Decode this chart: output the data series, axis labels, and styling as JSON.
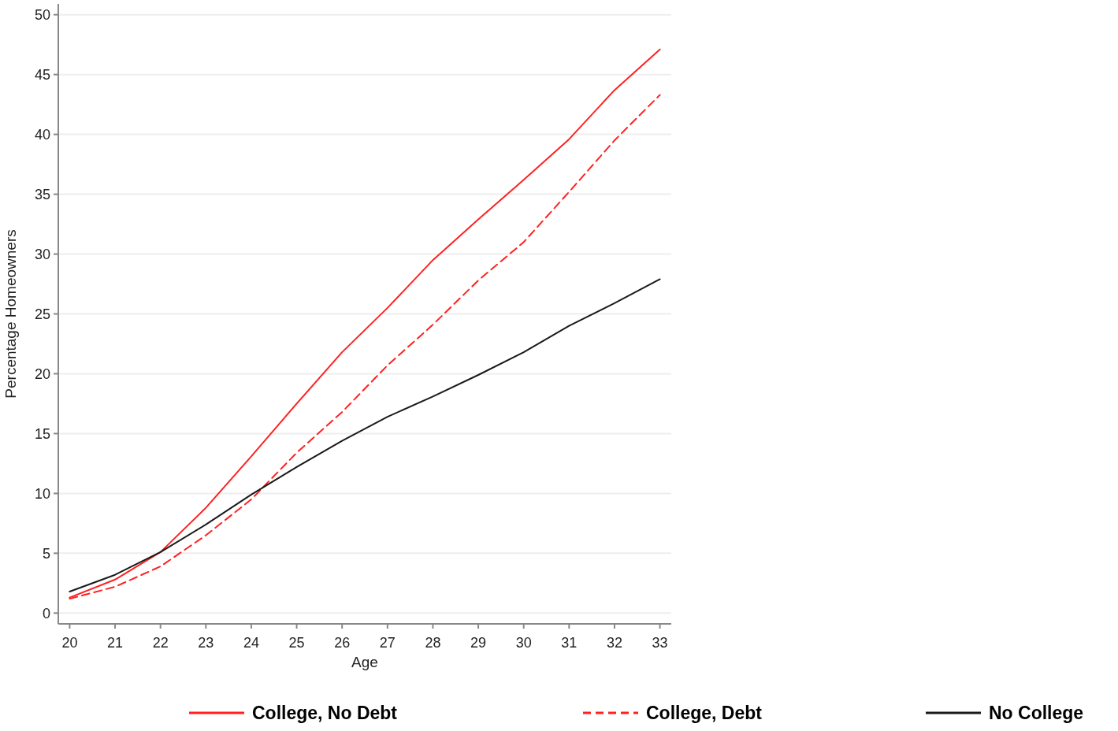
{
  "chart_data": {
    "type": "line",
    "xlabel": "Age",
    "ylabel": "Percentage Homeowners",
    "x": [
      20,
      21,
      22,
      23,
      24,
      25,
      26,
      27,
      28,
      29,
      30,
      31,
      32,
      33
    ],
    "series": [
      {
        "name": "College, No Debt",
        "color": "#ff2020",
        "line_style": "solid",
        "values": [
          1.3,
          2.8,
          5.1,
          8.8,
          13.1,
          17.5,
          21.8,
          25.5,
          29.5,
          32.9,
          36.2,
          39.6,
          43.7,
          47.1
        ]
      },
      {
        "name": "College, Debt",
        "color": "#ff2020",
        "line_style": "dashed",
        "values": [
          1.2,
          2.2,
          3.9,
          6.5,
          9.5,
          13.4,
          16.8,
          20.7,
          24.1,
          27.8,
          31.0,
          35.2,
          39.5,
          43.3
        ]
      },
      {
        "name": "No College",
        "color": "#1a1a1a",
        "line_style": "solid",
        "values": [
          1.8,
          3.2,
          5.1,
          7.4,
          9.9,
          12.2,
          14.4,
          16.4,
          18.1,
          19.9,
          21.8,
          24.0,
          25.9,
          27.9
        ]
      }
    ],
    "xlim": [
      19.75,
      33.25
    ],
    "xticks": [
      20,
      21,
      22,
      23,
      24,
      25,
      26,
      27,
      28,
      29,
      30,
      31,
      32,
      33
    ],
    "ylim": [
      -0.9,
      50.9
    ],
    "yticks": [
      0,
      5,
      10,
      15,
      20,
      25,
      30,
      35,
      40,
      45,
      50
    ],
    "grid": "y",
    "legend": "bottom",
    "marker": "none"
  }
}
